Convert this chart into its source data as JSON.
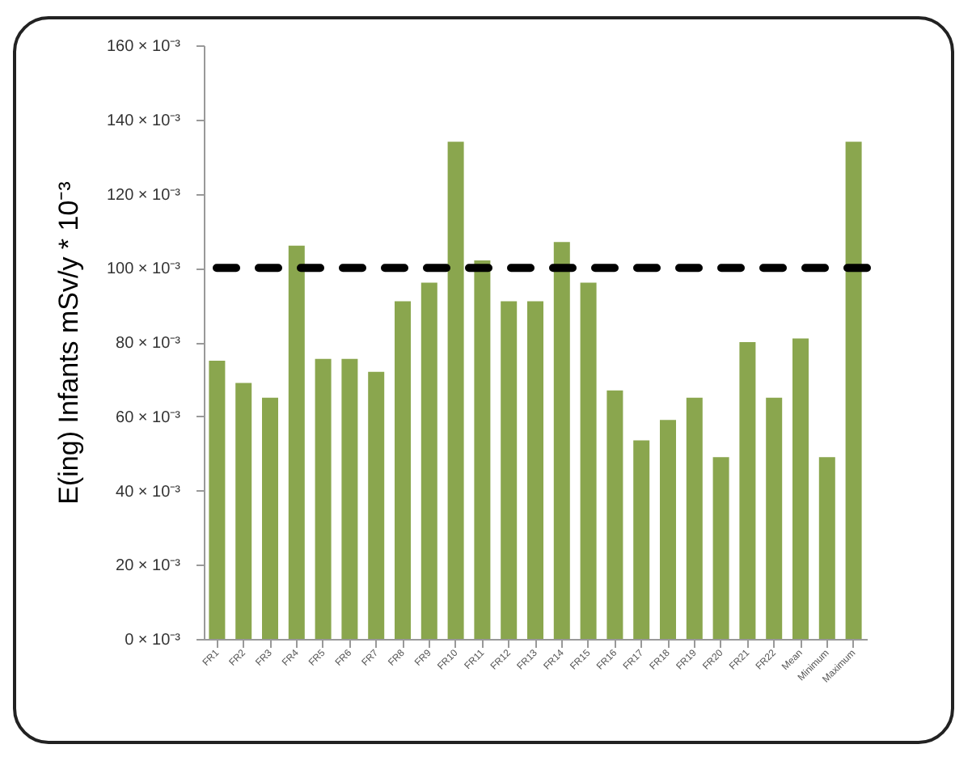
{
  "chart_data": {
    "type": "bar",
    "ylabel": "E(ing) Infants mSv/y * 10⁻³",
    "categories": [
      "FR1",
      "FR2",
      "FR3",
      "FR4",
      "FR5",
      "FR6",
      "FR7",
      "FR8",
      "FR9",
      "FR10",
      "FR11",
      "FR12",
      "FR13",
      "FR14",
      "FR15",
      "FR16",
      "FR17",
      "FR18",
      "FR19",
      "FR20",
      "FR21",
      "FR22",
      "Mean",
      "Minimum",
      "Maximum"
    ],
    "values": [
      0.075,
      0.069,
      0.065,
      0.106,
      0.0755,
      0.0755,
      0.072,
      0.091,
      0.096,
      0.134,
      0.102,
      0.091,
      0.091,
      0.107,
      0.096,
      0.067,
      0.0535,
      0.059,
      0.065,
      0.049,
      0.08,
      0.065,
      0.081,
      0.049,
      0.134
    ],
    "color": "#8aa64e",
    "ylim": [
      0,
      0.16
    ],
    "yticks": [
      {
        "value": 0,
        "label": "0 × 10⁻³"
      },
      {
        "value": 0.02,
        "label": "20 × 10⁻³"
      },
      {
        "value": 0.04,
        "label": "40 × 10⁻³"
      },
      {
        "value": 0.06,
        "label": "60 × 10⁻³"
      },
      {
        "value": 0.08,
        "label": "80 × 10⁻³"
      },
      {
        "value": 0.1,
        "label": "100 × 10⁻³"
      },
      {
        "value": 0.12,
        "label": "120 × 10⁻³"
      },
      {
        "value": 0.14,
        "label": "140 × 10⁻³"
      },
      {
        "value": 0.16,
        "label": "160 × 10⁻³"
      }
    ],
    "ref_lines": [
      {
        "axis": "y",
        "value": 0.1,
        "color": "#000000",
        "line_style": "dashed"
      }
    ]
  }
}
